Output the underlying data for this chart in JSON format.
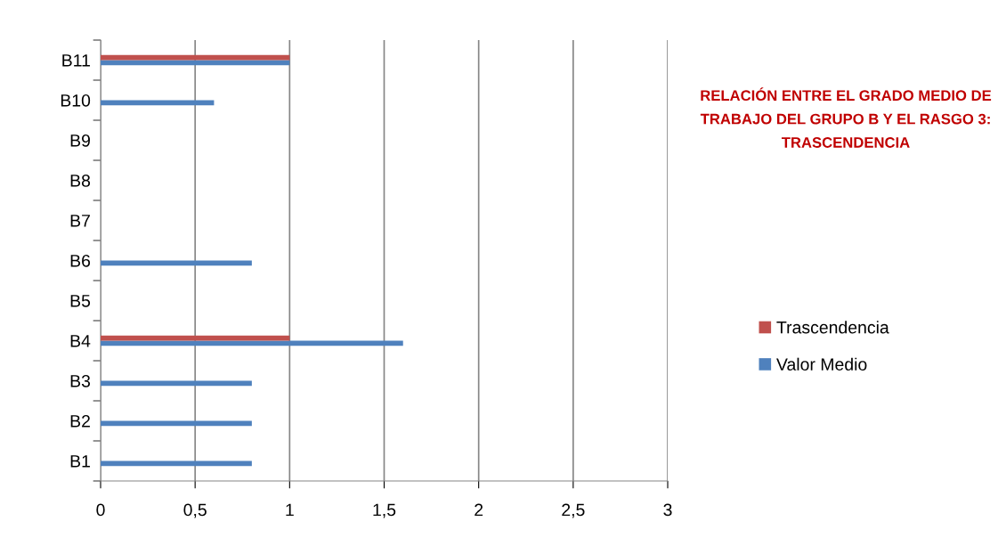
{
  "chart_data": {
    "type": "bar",
    "orientation": "horizontal",
    "title": "RELACIÓN ENTRE EL GRADO MEDIO DE TRABAJO DEL GRUPO B Y EL RASGO 3: TRASCENDENCIA",
    "categories": [
      "B11",
      "B10",
      "B9",
      "B8",
      "B7",
      "B6",
      "B5",
      "B4",
      "B3",
      "B2",
      "B1"
    ],
    "series": [
      {
        "name": "Valor Medio",
        "color": "#4f81bd",
        "values": [
          1,
          0.6,
          null,
          null,
          null,
          0.8,
          null,
          1.6,
          0.8,
          0.8,
          0.8
        ]
      },
      {
        "name": "Trascendencia",
        "color": "#c0504d",
        "values": [
          1,
          null,
          null,
          null,
          null,
          null,
          null,
          1,
          null,
          null,
          null
        ]
      }
    ],
    "xlim": [
      0,
      3
    ],
    "xticks": [
      0,
      {
        "value": 0.5,
        "label": "0,5"
      },
      1,
      {
        "value": 1.5,
        "label": "1,5"
      },
      2,
      {
        "value": 2.5,
        "label": "2,5"
      },
      3
    ],
    "grid": "x",
    "legend": "right"
  }
}
